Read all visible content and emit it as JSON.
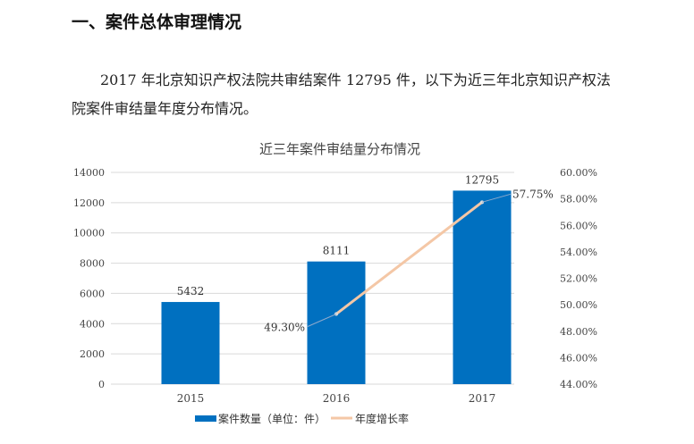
{
  "heading": "一、案件总体审理情况",
  "paragraph": "2017 年北京知识产权法院共审结案件 12795 件，以下为近三年北京知识产权法院案件审结量年度分布情况。",
  "chart_data": {
    "type": "bar+line",
    "title": "近三年案件审结量分布情况",
    "categories": [
      "2015",
      "2016",
      "2017"
    ],
    "series": [
      {
        "name": "案件数量（单位：件）",
        "type": "bar",
        "axis": "left",
        "values": [
          5432,
          8111,
          12795
        ],
        "labels": [
          "5432",
          "8111",
          "12795"
        ],
        "color": "#0070C0"
      },
      {
        "name": "年度增长率",
        "type": "line",
        "axis": "right",
        "values": [
          null,
          49.3,
          57.75
        ],
        "labels": [
          "",
          "49.30%",
          "57.75%"
        ],
        "color": "#F4C7A6"
      }
    ],
    "y_left": {
      "range": [
        0,
        14000
      ],
      "ticks": [
        "0",
        "2000",
        "4000",
        "6000",
        "8000",
        "10000",
        "12000",
        "14000"
      ]
    },
    "y_right": {
      "range": [
        44,
        60
      ],
      "ticks": [
        "44.00%",
        "46.00%",
        "48.00%",
        "50.00%",
        "52.00%",
        "54.00%",
        "56.00%",
        "58.00%",
        "60.00%"
      ]
    },
    "grid": true,
    "legend": "bottom"
  }
}
